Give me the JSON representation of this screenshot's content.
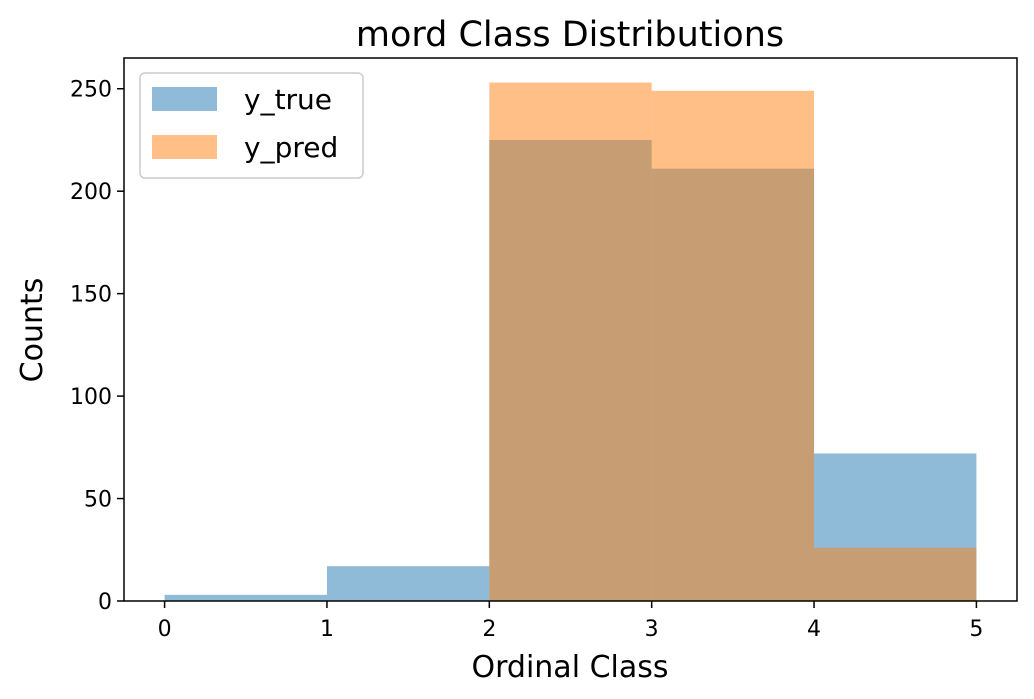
{
  "chart_data": {
    "type": "bar",
    "title": "mord Class Distributions",
    "xlabel": "Ordinal Class",
    "ylabel": "Counts",
    "bins": [
      [
        0,
        1
      ],
      [
        1,
        2
      ],
      [
        2,
        3
      ],
      [
        3,
        4
      ],
      [
        4,
        5
      ]
    ],
    "series": [
      {
        "name": "y_true",
        "values": [
          3,
          17,
          225,
          211,
          72
        ],
        "color": "#1f77b4",
        "opacity": 0.5
      },
      {
        "name": "y_pred",
        "values": [
          0,
          0,
          253,
          249,
          26
        ],
        "color": "#ff7f0e",
        "opacity": 0.5
      }
    ],
    "xlim": [
      -0.25,
      5.25
    ],
    "ylim": [
      0,
      265
    ],
    "xticks": [
      0,
      1,
      2,
      3,
      4,
      5
    ],
    "yticks": [
      0,
      50,
      100,
      150,
      200,
      250
    ],
    "grid": false,
    "legend_position": "upper-left"
  }
}
